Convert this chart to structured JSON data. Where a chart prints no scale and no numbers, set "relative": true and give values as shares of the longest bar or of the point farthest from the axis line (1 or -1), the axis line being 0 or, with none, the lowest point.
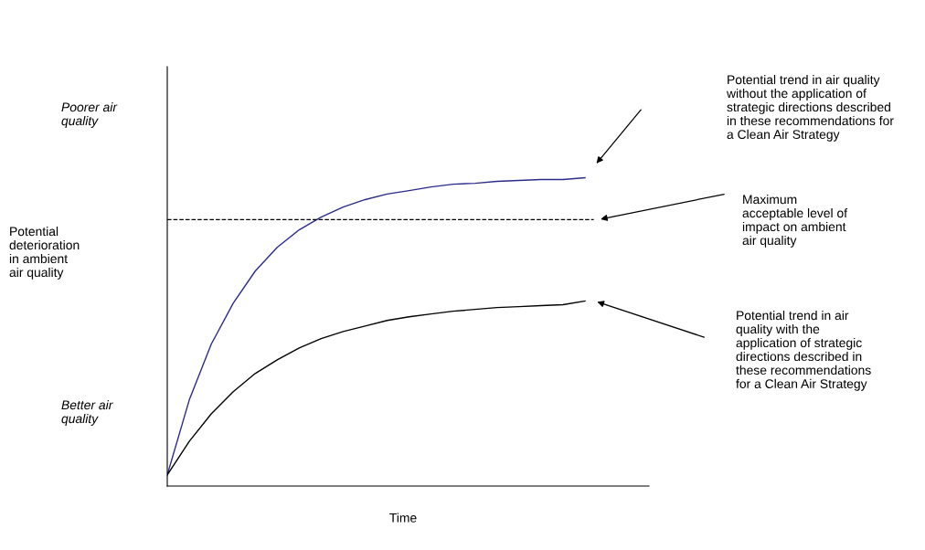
{
  "chart_data": {
    "type": "line",
    "relative": true,
    "xlabel": "Time",
    "categories": [
      null,
      null,
      null,
      null,
      null,
      null,
      null,
      null,
      null,
      null,
      null,
      null,
      null,
      null,
      null,
      null,
      null,
      null,
      null,
      null
    ],
    "series": [
      {
        "color": "#2b2b8c",
        "values": [
          0.036,
          0.279,
          0.46,
          0.593,
          0.697,
          0.774,
          0.831,
          0.872,
          0.905,
          0.929,
          0.947,
          0.958,
          0.97,
          0.979,
          0.982,
          0.988,
          0.991,
          0.994,
          0.994,
          1.0
        ]
      },
      {
        "color": "#000000",
        "values": [
          0.036,
          0.145,
          0.234,
          0.306,
          0.365,
          0.409,
          0.448,
          0.478,
          0.501,
          0.519,
          0.537,
          0.549,
          0.558,
          0.567,
          0.573,
          0.579,
          0.582,
          0.585,
          0.588,
          0.6
        ]
      }
    ],
    "ref_lines": [
      {
        "axis": "y",
        "value": 0.864,
        "color": "#000000",
        "line_style": "dashed"
      }
    ],
    "annotations": [
      "Potential trend in air quality\nwithout the application of\nstrategic directions described\nin these recommendations for\na Clean Air Strategy",
      "Maximum\nacceptable level of\nimpact on ambient\nair quality",
      "Potential trend in air\nquality with the\napplication of strategic\ndirections described in\nthese recommendations\nfor a Clean Air Strategy",
      "Poorer air\nquality",
      "Potential\ndeterioration\nin ambient\nair quality",
      "Better air\nquality"
    ],
    "legend": false,
    "marker": "none",
    "line_style": "solid"
  }
}
